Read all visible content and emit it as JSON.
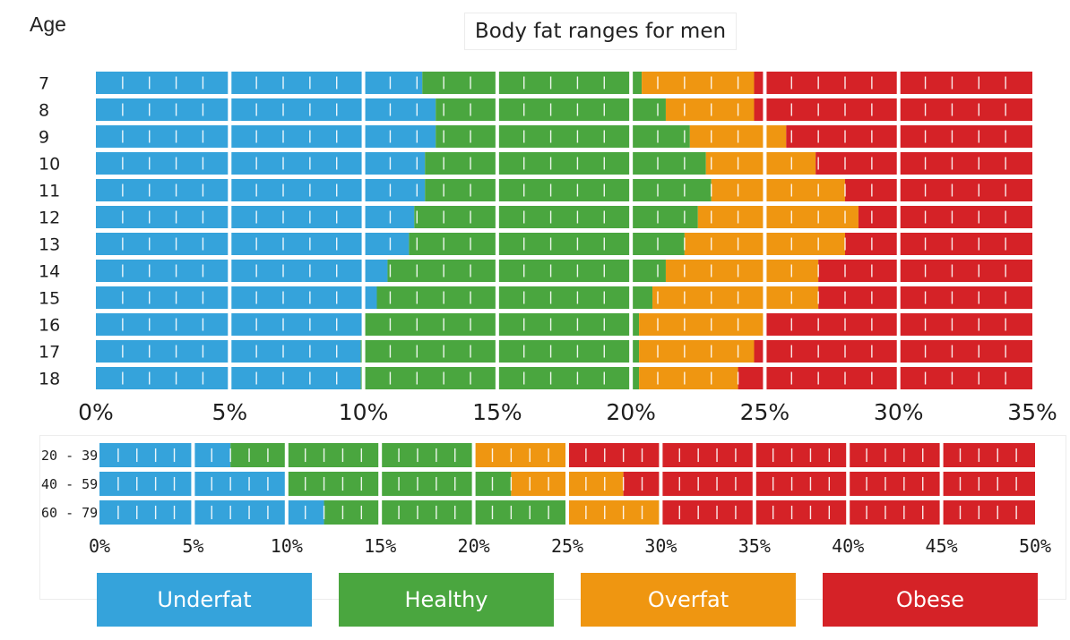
{
  "title": "Body fat ranges for men",
  "age_label": "Age",
  "colors": {
    "underfat": "#35a3db",
    "healthy": "#4aa63f",
    "overfat": "#ef9611",
    "obese": "#d52227"
  },
  "chart_data": [
    {
      "type": "bar",
      "orientation": "horizontal-stacked",
      "categories": [
        "7",
        "8",
        "9",
        "10",
        "11",
        "12",
        "13",
        "14",
        "15",
        "16",
        "17",
        "18"
      ],
      "xlim": [
        0,
        35
      ],
      "xticks": [
        "0%",
        "5%",
        "10%",
        "15%",
        "20%",
        "25%",
        "30%",
        "35%"
      ],
      "series": [
        {
          "name": "Underfat",
          "values": [
            12.2,
            12.7,
            12.7,
            12.3,
            12.3,
            11.9,
            11.7,
            10.9,
            10.5,
            10.0,
            9.9,
            9.9
          ]
        },
        {
          "name": "Healthy",
          "values": [
            8.2,
            8.6,
            9.5,
            10.5,
            10.7,
            10.6,
            10.3,
            10.4,
            10.3,
            10.3,
            10.4,
            10.4
          ]
        },
        {
          "name": "Overfat",
          "values": [
            4.2,
            3.3,
            3.6,
            4.1,
            5.0,
            6.0,
            6.0,
            5.7,
            6.2,
            4.7,
            4.3,
            3.7
          ]
        },
        {
          "name": "Obese",
          "values": [
            10.4,
            10.4,
            9.2,
            8.1,
            7.0,
            6.5,
            7.0,
            8.0,
            8.0,
            10.0,
            10.4,
            11.0
          ]
        }
      ]
    },
    {
      "type": "bar",
      "orientation": "horizontal-stacked",
      "categories": [
        "20 - 39",
        "40 - 59",
        "60 - 79"
      ],
      "xlim": [
        0,
        50
      ],
      "xticks": [
        "0%",
        "5%",
        "10%",
        "15%",
        "20%",
        "25%",
        "30%",
        "35%",
        "40%",
        "45%",
        "50%"
      ],
      "series": [
        {
          "name": "Underfat",
          "values": [
            7,
            10,
            12
          ]
        },
        {
          "name": "Healthy",
          "values": [
            13,
            12,
            13
          ]
        },
        {
          "name": "Overfat",
          "values": [
            5,
            6,
            5
          ]
        },
        {
          "name": "Obese",
          "values": [
            25,
            22,
            20
          ]
        }
      ]
    }
  ],
  "legend": [
    {
      "key": "underfat",
      "label": "Underfat"
    },
    {
      "key": "healthy",
      "label": "Healthy"
    },
    {
      "key": "overfat",
      "label": "Overfat"
    },
    {
      "key": "obese",
      "label": "Obese"
    }
  ]
}
